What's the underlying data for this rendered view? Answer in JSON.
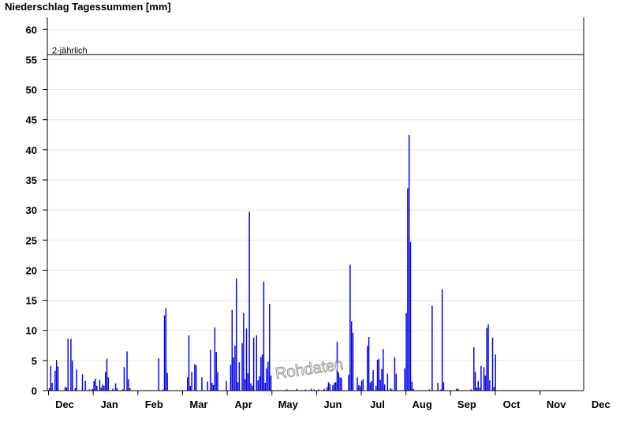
{
  "chart_data": {
    "type": "bar",
    "title": "Niederschlag Tagessummen [mm]",
    "ylim": [
      0,
      62
    ],
    "y_ticks": [
      0,
      5,
      10,
      15,
      20,
      25,
      30,
      35,
      40,
      45,
      50,
      55,
      60
    ],
    "x_ticks": [
      "Dec",
      "Jan",
      "Feb",
      "Mar",
      "Apr",
      "May",
      "Jun",
      "Jul",
      "Aug",
      "Sep",
      "Oct",
      "Nov",
      "Dec"
    ],
    "grid": true,
    "bar_color": "#0000ee",
    "reference_line": {
      "label": "2-jährlich",
      "value": 55.8
    },
    "watermark": "Rohdaten",
    "series": [
      {
        "points": [
          [
            "11-26",
            0.4
          ],
          [
            "11-27",
            4.1
          ],
          [
            "11-28",
            1.3
          ],
          [
            "11-30",
            3.3
          ],
          [
            "12-01",
            5.1
          ],
          [
            "12-02",
            4.0
          ],
          [
            "12-07",
            0.6
          ],
          [
            "12-08",
            0.5
          ],
          [
            "12-09",
            8.6
          ],
          [
            "12-11",
            8.6
          ],
          [
            "12-12",
            5.0
          ],
          [
            "12-14",
            0.4
          ],
          [
            "12-15",
            3.5
          ],
          [
            "12-19",
            2.7
          ],
          [
            "12-21",
            1.6
          ],
          [
            "12-24",
            0.2
          ],
          [
            "12-26",
            0.3
          ],
          [
            "12-27",
            1.6
          ],
          [
            "12-28",
            2.0
          ],
          [
            "12-29",
            0.8
          ],
          [
            "12-31",
            1.8
          ],
          [
            "01-01",
            0.5
          ],
          [
            "01-02",
            1.0
          ],
          [
            "01-03",
            0.8
          ],
          [
            "01-04",
            3.1
          ],
          [
            "01-05",
            5.3
          ],
          [
            "01-06",
            2.2
          ],
          [
            "01-09",
            0.3
          ],
          [
            "01-11",
            1.2
          ],
          [
            "01-12",
            0.4
          ],
          [
            "01-16",
            0.2
          ],
          [
            "01-17",
            3.9
          ],
          [
            "01-19",
            6.5
          ],
          [
            "01-20",
            1.9
          ],
          [
            "01-21",
            0.4
          ],
          [
            "02-10",
            5.4
          ],
          [
            "02-13",
            0.2
          ],
          [
            "02-14",
            12.5
          ],
          [
            "02-15",
            13.7
          ],
          [
            "02-16",
            2.9
          ],
          [
            "03-02",
            2.2
          ],
          [
            "03-03",
            9.2
          ],
          [
            "03-04",
            0.8
          ],
          [
            "03-05",
            3.1
          ],
          [
            "03-07",
            4.4
          ],
          [
            "03-08",
            4.2
          ],
          [
            "03-12",
            2.2
          ],
          [
            "03-16",
            1.5
          ],
          [
            "03-18",
            6.8
          ],
          [
            "03-19",
            1.3
          ],
          [
            "03-20",
            0.9
          ],
          [
            "03-21",
            10.5
          ],
          [
            "03-22",
            6.4
          ],
          [
            "03-23",
            3.1
          ],
          [
            "03-29",
            1.6
          ],
          [
            "04-01",
            4.3
          ],
          [
            "04-02",
            13.4
          ],
          [
            "04-03",
            5.5
          ],
          [
            "04-04",
            7.5
          ],
          [
            "04-05",
            18.6
          ],
          [
            "04-06",
            1.4
          ],
          [
            "04-07",
            4.7
          ],
          [
            "04-09",
            7.9
          ],
          [
            "04-10",
            12.9
          ],
          [
            "04-11",
            1.9
          ],
          [
            "04-12",
            10.3
          ],
          [
            "04-13",
            2.9
          ],
          [
            "04-14",
            29.7
          ],
          [
            "04-15",
            1.2
          ],
          [
            "04-16",
            0.8
          ],
          [
            "04-17",
            8.8
          ],
          [
            "04-19",
            9.2
          ],
          [
            "04-20",
            1.7
          ],
          [
            "04-21",
            2.4
          ],
          [
            "04-22",
            5.6
          ],
          [
            "04-23",
            6.0
          ],
          [
            "04-24",
            18.1
          ],
          [
            "04-25",
            1.3
          ],
          [
            "04-26",
            3.7
          ],
          [
            "04-27",
            4.8
          ],
          [
            "04-28",
            14.4
          ],
          [
            "04-29",
            2.5
          ],
          [
            "05-10",
            0.2
          ],
          [
            "05-17",
            0.3
          ],
          [
            "05-23",
            0.2
          ],
          [
            "05-27",
            0.3
          ],
          [
            "05-29",
            0.2
          ],
          [
            "06-01",
            0.2
          ],
          [
            "06-05",
            0.3
          ],
          [
            "06-07",
            0.6
          ],
          [
            "06-08",
            1.4
          ],
          [
            "06-09",
            1.1
          ],
          [
            "06-11",
            0.9
          ],
          [
            "06-12",
            1.3
          ],
          [
            "06-13",
            1.4
          ],
          [
            "06-14",
            8.1
          ],
          [
            "06-15",
            3.0
          ],
          [
            "06-16",
            2.2
          ],
          [
            "06-17",
            2.1
          ],
          [
            "06-22",
            2.6
          ],
          [
            "06-23",
            20.9
          ],
          [
            "06-24",
            11.5
          ],
          [
            "06-25",
            9.6
          ],
          [
            "06-28",
            2.2
          ],
          [
            "06-29",
            0.9
          ],
          [
            "06-30",
            0.7
          ],
          [
            "07-01",
            1.6
          ],
          [
            "07-02",
            1.9
          ],
          [
            "07-05",
            7.4
          ],
          [
            "07-06",
            8.9
          ],
          [
            "07-07",
            1.3
          ],
          [
            "07-08",
            1.6
          ],
          [
            "07-09",
            3.4
          ],
          [
            "07-11",
            0.8
          ],
          [
            "07-12",
            5.1
          ],
          [
            "07-13",
            5.3
          ],
          [
            "07-14",
            1.8
          ],
          [
            "07-15",
            3.6
          ],
          [
            "07-16",
            6.9
          ],
          [
            "07-17",
            1.0
          ],
          [
            "07-19",
            2.8
          ],
          [
            "07-21",
            0.4
          ],
          [
            "07-22",
            0.2
          ],
          [
            "07-24",
            5.5
          ],
          [
            "07-25",
            2.8
          ],
          [
            "07-31",
            3.7
          ],
          [
            "08-01",
            12.9
          ],
          [
            "08-02",
            33.6
          ],
          [
            "08-03",
            42.5
          ],
          [
            "08-04",
            24.7
          ],
          [
            "08-05",
            1.5
          ],
          [
            "08-06",
            0.3
          ],
          [
            "08-17",
            0.2
          ],
          [
            "08-19",
            14.1
          ],
          [
            "08-23",
            1.3
          ],
          [
            "08-25",
            0.2
          ],
          [
            "08-26",
            16.8
          ],
          [
            "08-27",
            1.4
          ],
          [
            "09-05",
            0.3
          ],
          [
            "09-06",
            0.3
          ],
          [
            "09-15",
            0.2
          ],
          [
            "09-17",
            7.2
          ],
          [
            "09-18",
            3.1
          ],
          [
            "09-19",
            0.5
          ],
          [
            "09-20",
            1.6
          ],
          [
            "09-21",
            0.5
          ],
          [
            "09-22",
            4.1
          ],
          [
            "09-24",
            3.9
          ],
          [
            "09-25",
            2.5
          ],
          [
            "09-26",
            10.4
          ],
          [
            "09-27",
            11.0
          ],
          [
            "09-28",
            1.7
          ],
          [
            "09-30",
            8.8
          ],
          [
            "10-01",
            0.6
          ],
          [
            "10-02",
            6.0
          ]
        ]
      }
    ]
  }
}
